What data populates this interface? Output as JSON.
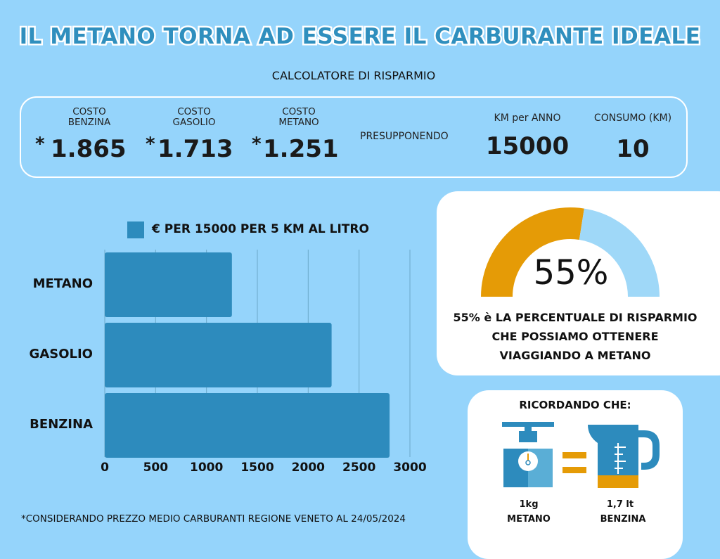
{
  "title": "IL METANO TORNA AD ESSERE IL CARBURANTE IDEALE",
  "subtitle": "CALCOLATORE DI RISPARMIO",
  "calculator": {
    "benzina_label_1": "COSTO",
    "benzina_label_2": "BENZINA",
    "benzina_value": "1.865",
    "gasolio_label_1": "COSTO",
    "gasolio_label_2": "GASOLIO",
    "gasolio_value": "1.713",
    "metano_label_1": "COSTO",
    "metano_label_2": "METANO",
    "metano_value": "1.251",
    "asterisk": "*",
    "assuming": "PRESUPPONENDO",
    "km_label": "KM per ANNO",
    "km_value": "15000",
    "consumo_label": "CONSUMO (KM)",
    "consumo_value": "10"
  },
  "chart_data": {
    "type": "bar",
    "orientation": "horizontal",
    "categories": [
      "METANO",
      "GASOLIO",
      "BENZINA"
    ],
    "series": [
      {
        "name": "€ PER 15000 PER 5 KM AL LITRO",
        "values": [
          1250,
          2230,
          2800
        ]
      }
    ],
    "xlim": [
      0,
      3000
    ],
    "xticks": [
      "0",
      "500",
      "1000",
      "1500",
      "2000",
      "2500",
      "3000"
    ],
    "grid": true,
    "legend": "top",
    "color": "#2d8bbd"
  },
  "savings": {
    "percent": 55,
    "percent_text": "55%",
    "line1": "55% è LA PERCENTUALE DI RISPARMIO",
    "line2": "CHE POSSIAMO OTTENERE",
    "line3": "VIAGGIANDO A METANO",
    "gauge_color": "#e59b06",
    "gauge_bg_color": "#9fd8f8"
  },
  "remember": {
    "title": "RICORDANDO CHE:",
    "left_qty": "1kg",
    "left_name": "METANO",
    "right_qty": "1,7 lt",
    "right_name": "BENZINA",
    "left_icon": "scale-icon",
    "right_icon": "measuring-jug-icon",
    "equals_icon": "equals-icon"
  },
  "footnote": "*CONSIDERANDO PREZZO MEDIO CARBURANTI REGIONE VENETO AL 24/05/2024"
}
